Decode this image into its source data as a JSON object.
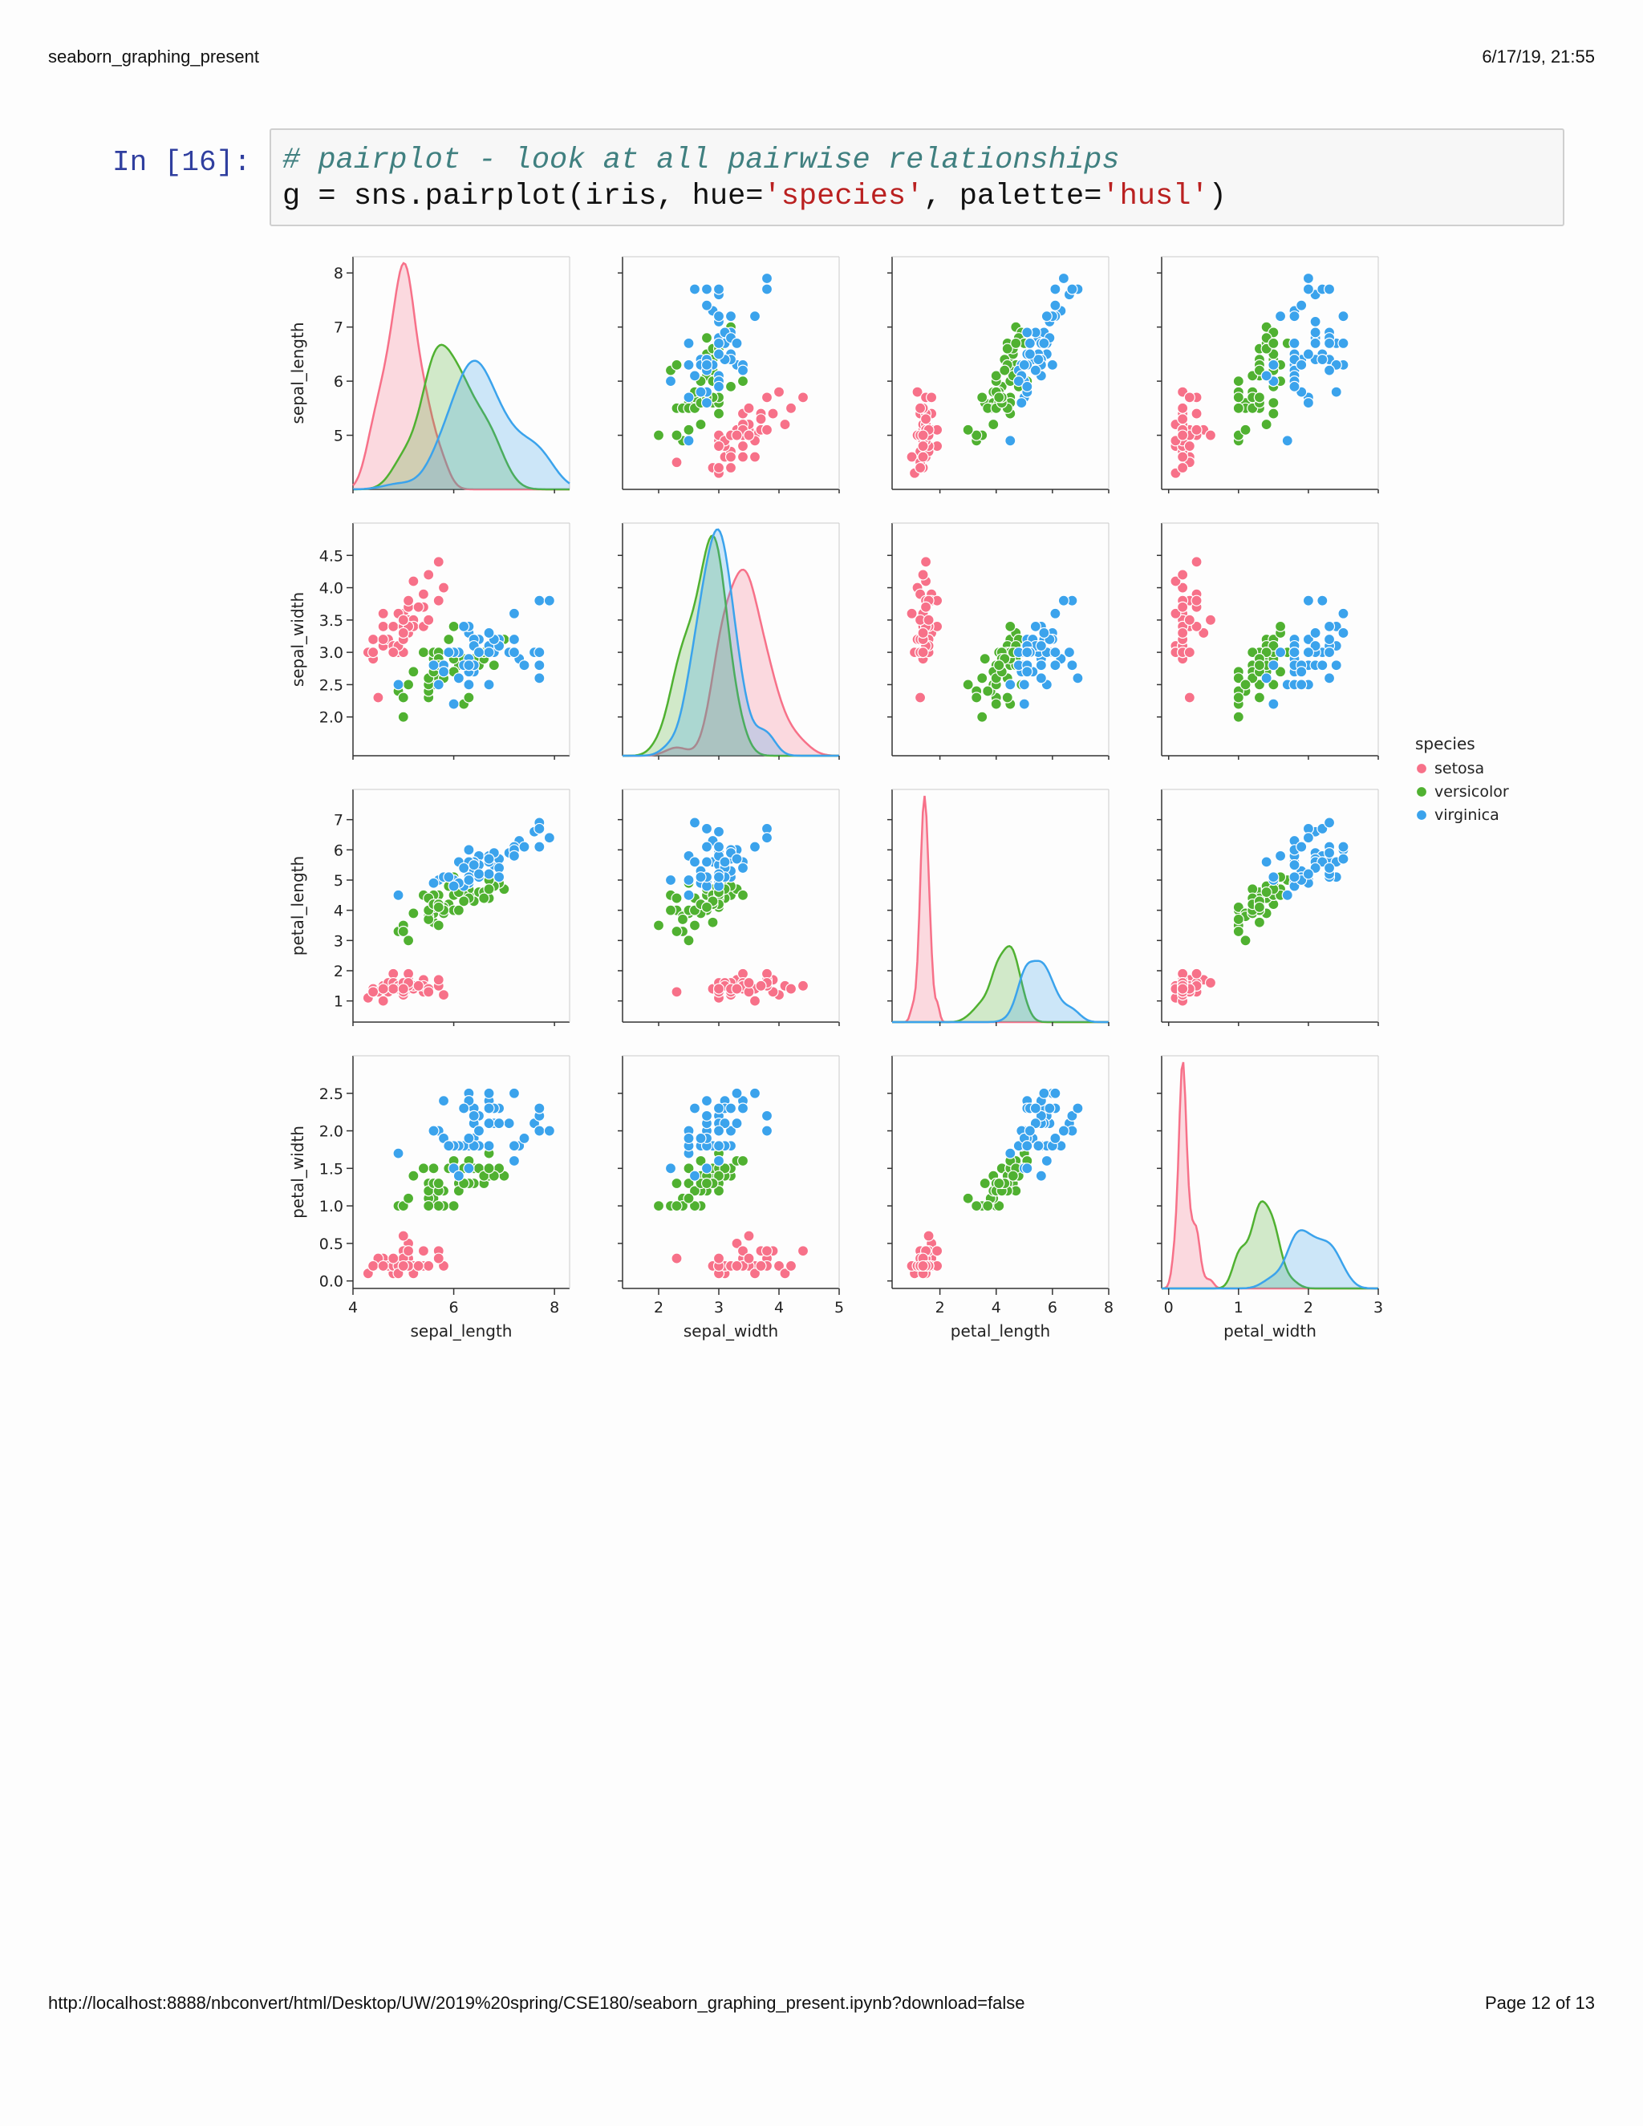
{
  "header": {
    "title": "seaborn_graphing_present",
    "timestamp": "6/17/19, 21:55"
  },
  "footer": {
    "url": "http://localhost:8888/nbconvert/html/Desktop/UW/2019%20spring/CSE180/seaborn_graphing_present.ipynb?download=false",
    "page": "Page 12 of 13"
  },
  "cell": {
    "prompt": "In [16]:",
    "code": {
      "comment": "# pairplot - look at all pairwise relationships",
      "line2_prefix": "g = sns.pairplot(iris, hue=",
      "string1": "'species'",
      "line2_middle": ", palette=",
      "string2": "'husl'",
      "line2_suffix": ")"
    }
  },
  "chart_data": {
    "type": "scatter",
    "subtype": "pairplot",
    "variables": [
      "sepal_length",
      "sepal_width",
      "petal_length",
      "petal_width"
    ],
    "diagonal": "kde",
    "legend": {
      "title": "species",
      "placement": "right",
      "entries": [
        {
          "name": "setosa",
          "color": "#f77189"
        },
        {
          "name": "versicolor",
          "color": "#50b131"
        },
        {
          "name": "virginica",
          "color": "#3ba3ec"
        }
      ]
    },
    "axes": {
      "sepal_length": {
        "lim": [
          4,
          8.3
        ],
        "ticks": [
          4,
          6,
          8
        ],
        "yticks": [
          5,
          6,
          7,
          8
        ],
        "tick_labels": [
          "5",
          "6",
          "7",
          "8"
        ]
      },
      "sepal_width": {
        "lim": [
          1.4,
          5.0
        ],
        "ticks": [
          2,
          3,
          4,
          5
        ],
        "yticks": [
          2.0,
          2.5,
          3.0,
          3.5,
          4.0,
          4.5
        ],
        "tick_labels": [
          "2.0",
          "2.5",
          "3.0",
          "3.5",
          "4.0",
          "4.5"
        ]
      },
      "petal_length": {
        "lim": [
          0.3,
          8.0
        ],
        "ticks": [
          2,
          4,
          6,
          8
        ],
        "yticks": [
          1,
          2,
          3,
          4,
          5,
          6,
          7
        ],
        "tick_labels": [
          "1",
          "2",
          "3",
          "4",
          "5",
          "6",
          "7"
        ]
      },
      "petal_width": {
        "lim": [
          -0.1,
          3.0
        ],
        "ticks": [
          0,
          1,
          2,
          3
        ],
        "yticks": [
          0.0,
          0.5,
          1.0,
          1.5,
          2.0,
          2.5
        ],
        "tick_labels": [
          "0.0",
          "0.5",
          "1.0",
          "1.5",
          "2.0",
          "2.5"
        ]
      }
    },
    "grid": false,
    "species_data": {
      "setosa": {
        "sepal_length": [
          5.1,
          4.9,
          4.7,
          4.6,
          5.0,
          5.4,
          4.6,
          5.0,
          4.4,
          4.9,
          5.4,
          4.8,
          4.8,
          4.3,
          5.8,
          5.7,
          5.4,
          5.1,
          5.7,
          5.1,
          5.4,
          5.1,
          4.6,
          5.1,
          4.8,
          5.0,
          5.0,
          5.2,
          5.2,
          4.7,
          4.8,
          5.4,
          5.2,
          5.5,
          4.9,
          5.0,
          5.5,
          4.9,
          4.4,
          5.1,
          5.0,
          4.5,
          4.4,
          5.0,
          5.1,
          4.8,
          5.1,
          4.6,
          5.3,
          5.0
        ],
        "sepal_width": [
          3.5,
          3.0,
          3.2,
          3.1,
          3.6,
          3.9,
          3.4,
          3.4,
          2.9,
          3.1,
          3.7,
          3.4,
          3.0,
          3.0,
          4.0,
          4.4,
          3.9,
          3.5,
          3.8,
          3.8,
          3.4,
          3.7,
          3.6,
          3.3,
          3.4,
          3.0,
          3.4,
          3.5,
          3.4,
          3.2,
          3.1,
          3.4,
          4.1,
          4.2,
          3.1,
          3.2,
          3.5,
          3.6,
          3.0,
          3.4,
          3.5,
          2.3,
          3.2,
          3.5,
          3.8,
          3.0,
          3.8,
          3.2,
          3.7,
          3.3
        ],
        "petal_length": [
          1.4,
          1.4,
          1.3,
          1.5,
          1.4,
          1.7,
          1.4,
          1.5,
          1.4,
          1.5,
          1.5,
          1.6,
          1.4,
          1.1,
          1.2,
          1.5,
          1.3,
          1.4,
          1.7,
          1.5,
          1.7,
          1.5,
          1.0,
          1.7,
          1.9,
          1.6,
          1.6,
          1.5,
          1.4,
          1.6,
          1.6,
          1.5,
          1.5,
          1.4,
          1.5,
          1.2,
          1.3,
          1.4,
          1.3,
          1.5,
          1.3,
          1.3,
          1.3,
          1.6,
          1.9,
          1.4,
          1.6,
          1.4,
          1.5,
          1.4
        ],
        "petal_width": [
          0.2,
          0.2,
          0.2,
          0.2,
          0.2,
          0.4,
          0.3,
          0.2,
          0.2,
          0.1,
          0.2,
          0.2,
          0.1,
          0.1,
          0.2,
          0.4,
          0.4,
          0.3,
          0.3,
          0.3,
          0.2,
          0.4,
          0.2,
          0.5,
          0.2,
          0.2,
          0.4,
          0.2,
          0.2,
          0.2,
          0.2,
          0.4,
          0.1,
          0.2,
          0.2,
          0.2,
          0.2,
          0.1,
          0.2,
          0.2,
          0.3,
          0.3,
          0.2,
          0.6,
          0.4,
          0.3,
          0.2,
          0.2,
          0.2,
          0.2
        ]
      },
      "versicolor": {
        "sepal_length": [
          7.0,
          6.4,
          6.9,
          5.5,
          6.5,
          5.7,
          6.3,
          4.9,
          6.6,
          5.2,
          5.0,
          5.9,
          6.0,
          6.1,
          5.6,
          6.7,
          5.6,
          5.8,
          6.2,
          5.6,
          5.9,
          6.1,
          6.3,
          6.1,
          6.4,
          6.6,
          6.8,
          6.7,
          6.0,
          5.7,
          5.5,
          5.5,
          5.8,
          6.0,
          5.4,
          6.0,
          6.7,
          6.3,
          5.6,
          5.5,
          5.5,
          6.1,
          5.8,
          5.0,
          5.6,
          5.7,
          5.7,
          6.2,
          5.1,
          5.7
        ],
        "sepal_width": [
          3.2,
          3.2,
          3.1,
          2.3,
          2.8,
          2.8,
          3.3,
          2.4,
          2.9,
          2.7,
          2.0,
          3.0,
          2.2,
          2.9,
          2.9,
          3.1,
          3.0,
          2.7,
          2.2,
          2.5,
          3.2,
          2.8,
          2.5,
          2.8,
          2.9,
          3.0,
          2.8,
          3.0,
          2.9,
          2.6,
          2.4,
          2.4,
          2.7,
          2.7,
          3.0,
          3.4,
          3.1,
          2.3,
          3.0,
          2.5,
          2.6,
          3.0,
          2.6,
          2.3,
          2.7,
          3.0,
          2.9,
          2.9,
          2.5,
          2.8
        ],
        "petal_length": [
          4.7,
          4.5,
          4.9,
          4.0,
          4.6,
          4.5,
          4.7,
          3.3,
          4.6,
          3.9,
          3.5,
          4.2,
          4.0,
          4.7,
          3.6,
          4.4,
          4.5,
          4.1,
          4.5,
          3.9,
          4.8,
          4.0,
          4.9,
          4.7,
          4.3,
          4.4,
          4.8,
          5.0,
          4.5,
          3.5,
          3.8,
          3.7,
          3.9,
          5.1,
          4.5,
          4.5,
          4.7,
          4.4,
          4.1,
          4.0,
          4.4,
          4.6,
          4.0,
          3.3,
          4.2,
          4.2,
          4.2,
          4.3,
          3.0,
          4.1
        ],
        "petal_width": [
          1.4,
          1.5,
          1.5,
          1.3,
          1.5,
          1.3,
          1.6,
          1.0,
          1.3,
          1.4,
          1.0,
          1.5,
          1.0,
          1.4,
          1.3,
          1.4,
          1.5,
          1.0,
          1.5,
          1.1,
          1.8,
          1.3,
          1.5,
          1.2,
          1.3,
          1.4,
          1.4,
          1.7,
          1.5,
          1.0,
          1.1,
          1.0,
          1.2,
          1.6,
          1.5,
          1.6,
          1.5,
          1.3,
          1.3,
          1.3,
          1.2,
          1.4,
          1.2,
          1.0,
          1.3,
          1.2,
          1.3,
          1.3,
          1.1,
          1.3
        ]
      },
      "virginica": {
        "sepal_length": [
          6.3,
          5.8,
          7.1,
          6.3,
          6.5,
          7.6,
          4.9,
          7.3,
          6.7,
          7.2,
          6.5,
          6.4,
          6.8,
          5.7,
          5.8,
          6.4,
          6.5,
          7.7,
          7.7,
          6.0,
          6.9,
          5.6,
          7.7,
          6.3,
          6.7,
          7.2,
          6.2,
          6.1,
          6.4,
          7.2,
          7.4,
          7.9,
          6.4,
          6.3,
          6.1,
          7.7,
          6.3,
          6.4,
          6.0,
          6.9,
          6.7,
          6.9,
          5.8,
          6.8,
          6.7,
          6.7,
          6.3,
          6.5,
          6.2,
          5.9
        ],
        "sepal_width": [
          3.3,
          2.7,
          3.0,
          2.9,
          3.0,
          3.0,
          2.5,
          2.9,
          2.5,
          3.6,
          3.2,
          2.7,
          3.0,
          2.5,
          2.8,
          3.2,
          3.0,
          3.8,
          2.6,
          2.2,
          3.2,
          2.8,
          2.8,
          2.7,
          3.3,
          3.2,
          2.8,
          3.0,
          2.8,
          3.0,
          2.8,
          3.8,
          2.8,
          2.8,
          2.6,
          3.0,
          3.4,
          3.1,
          3.0,
          3.1,
          3.1,
          3.1,
          2.7,
          3.2,
          3.3,
          3.0,
          2.5,
          3.0,
          3.4,
          3.0
        ],
        "petal_length": [
          6.0,
          5.1,
          5.9,
          5.6,
          5.8,
          6.6,
          4.5,
          6.3,
          5.8,
          6.1,
          5.1,
          5.3,
          5.5,
          5.0,
          5.1,
          5.3,
          5.5,
          6.7,
          6.9,
          5.0,
          5.7,
          4.9,
          6.7,
          4.9,
          5.7,
          6.0,
          4.8,
          4.9,
          5.6,
          5.8,
          6.1,
          6.4,
          5.6,
          5.1,
          5.6,
          6.1,
          5.6,
          5.5,
          4.8,
          5.4,
          5.6,
          5.1,
          5.1,
          5.9,
          5.7,
          5.2,
          5.0,
          5.2,
          5.4,
          5.1
        ],
        "petal_width": [
          2.5,
          1.9,
          2.1,
          1.8,
          2.2,
          2.1,
          1.7,
          1.8,
          1.8,
          2.5,
          2.0,
          1.9,
          2.1,
          2.0,
          2.4,
          2.3,
          1.8,
          2.2,
          2.3,
          1.5,
          2.3,
          2.0,
          2.0,
          1.8,
          2.1,
          1.8,
          1.8,
          1.8,
          2.1,
          1.6,
          1.9,
          2.0,
          2.2,
          1.5,
          1.4,
          2.3,
          2.4,
          1.8,
          1.8,
          2.1,
          2.4,
          2.3,
          1.9,
          2.3,
          2.5,
          2.3,
          1.9,
          2.0,
          2.3,
          1.8
        ]
      }
    }
  }
}
